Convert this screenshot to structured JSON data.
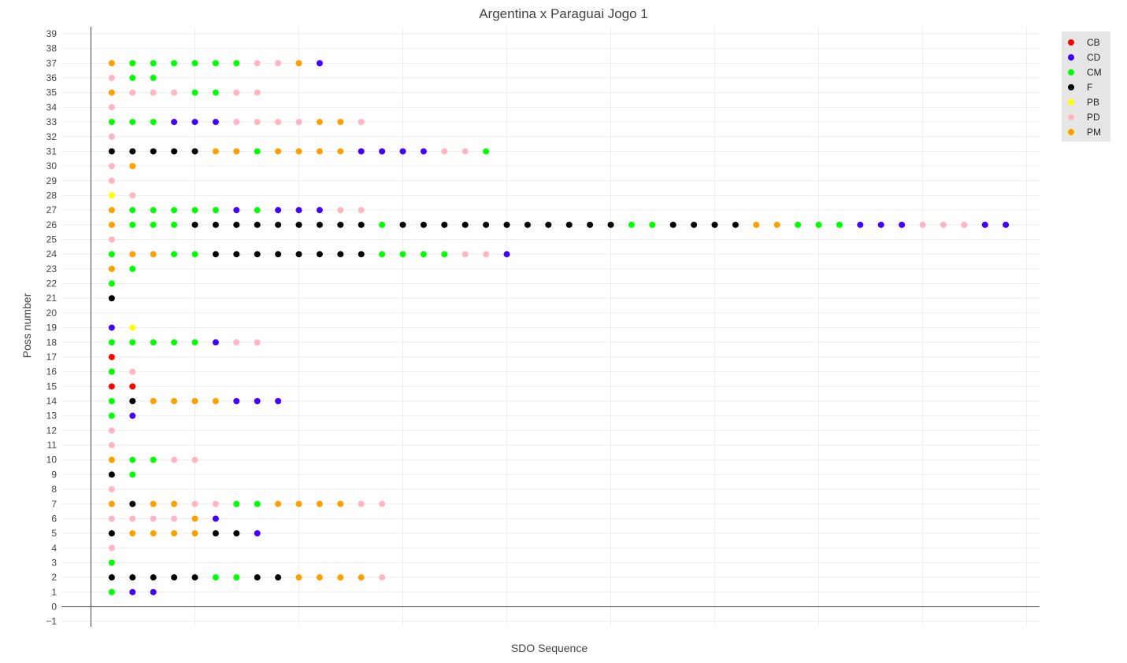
{
  "chart_data": {
    "type": "scatter",
    "title": "Argentina x Paraguai Jogo 1",
    "xlabel": "SDO Sequence",
    "ylabel": "Poss number",
    "ylim": [
      -1,
      39
    ],
    "y_ticks": [
      -1,
      0,
      1,
      2,
      3,
      4,
      5,
      6,
      7,
      8,
      9,
      10,
      11,
      12,
      13,
      14,
      15,
      16,
      17,
      18,
      19,
      20,
      21,
      22,
      23,
      24,
      25,
      26,
      27,
      28,
      29,
      30,
      31,
      32,
      33,
      34,
      35,
      36,
      37,
      38,
      39
    ],
    "y_tick_labels": [
      "−1",
      "0",
      "1",
      "2",
      "3",
      "4",
      "5",
      "6",
      "7",
      "8",
      "9",
      "10",
      "11",
      "12",
      "13",
      "14",
      "15",
      "16",
      "17",
      "18",
      "19",
      "20",
      "21",
      "22",
      "23",
      "24",
      "25",
      "26",
      "27",
      "28",
      "29",
      "30",
      "31",
      "32",
      "33",
      "34",
      "35",
      "36",
      "37",
      "38",
      "39"
    ],
    "xlim": [
      -1.5,
      45.5
    ],
    "x_gridlines": [
      0,
      5,
      10,
      15,
      20,
      25,
      30,
      35,
      40,
      45
    ],
    "grid": true,
    "legend_placement": "top-right",
    "categories": [
      "CB",
      "CD",
      "CM",
      "F",
      "PB",
      "PD",
      "PM"
    ],
    "colors": {
      "CB": "#ff0000",
      "CD": "#4400ff",
      "CM": "#00ff00",
      "F": "#000000",
      "PB": "#ffff00",
      "PD": "#ffb6c1",
      "PM": "#ffa000"
    },
    "rows": [
      {
        "y": 1,
        "seq": [
          "CM",
          "CD",
          "CD"
        ]
      },
      {
        "y": 2,
        "seq": [
          "F",
          "F",
          "F",
          "F",
          "F",
          "CM",
          "CM",
          "F",
          "F",
          "PM",
          "PM",
          "PM",
          "PM",
          "PD"
        ]
      },
      {
        "y": 3,
        "seq": [
          "CM"
        ]
      },
      {
        "y": 4,
        "seq": [
          "PD"
        ]
      },
      {
        "y": 5,
        "seq": [
          "F",
          "PM",
          "PM",
          "PM",
          "PM",
          "F",
          "F",
          "CD"
        ]
      },
      {
        "y": 6,
        "seq": [
          "PD",
          "PD",
          "PD",
          "PD",
          "PM",
          "CD"
        ]
      },
      {
        "y": 7,
        "seq": [
          "PM",
          "F",
          "PM",
          "PM",
          "PD",
          "PD",
          "CM",
          "CM",
          "PM",
          "PM",
          "PM",
          "PM",
          "PD",
          "PD"
        ]
      },
      {
        "y": 8,
        "seq": [
          "PD"
        ]
      },
      {
        "y": 9,
        "seq": [
          "F",
          "CM"
        ]
      },
      {
        "y": 10,
        "seq": [
          "PM",
          "CM",
          "CM",
          "PD",
          "PD"
        ]
      },
      {
        "y": 11,
        "seq": [
          "PD"
        ]
      },
      {
        "y": 12,
        "seq": [
          "PD"
        ]
      },
      {
        "y": 13,
        "seq": [
          "CM",
          "CD"
        ]
      },
      {
        "y": 14,
        "seq": [
          "CM",
          "F",
          "PM",
          "PM",
          "PM",
          "PM",
          "CD",
          "CD",
          "CD"
        ]
      },
      {
        "y": 15,
        "seq": [
          "CB",
          "CB"
        ]
      },
      {
        "y": 16,
        "seq": [
          "CM",
          "PD"
        ]
      },
      {
        "y": 17,
        "seq": [
          "CB"
        ]
      },
      {
        "y": 18,
        "seq": [
          "CM",
          "CM",
          "CM",
          "CM",
          "CM",
          "CD",
          "PD",
          "PD"
        ]
      },
      {
        "y": 19,
        "seq": [
          "CD",
          "PB"
        ]
      },
      {
        "y": 21,
        "seq": [
          "F"
        ]
      },
      {
        "y": 22,
        "seq": [
          "CM"
        ]
      },
      {
        "y": 23,
        "seq": [
          "PM",
          "CM"
        ]
      },
      {
        "y": 24,
        "seq": [
          "CM",
          "PM",
          "PM",
          "CM",
          "CM",
          "F",
          "F",
          "F",
          "F",
          "F",
          "F",
          "F",
          "F",
          "CM",
          "CM",
          "CM",
          "CM",
          "PD",
          "PD",
          "CD"
        ]
      },
      {
        "y": 25,
        "seq": [
          "PD"
        ]
      },
      {
        "y": 26,
        "seq": [
          "PM",
          "CM",
          "CM",
          "CM",
          "F",
          "F",
          "F",
          "F",
          "F",
          "F",
          "F",
          "F",
          "F",
          "CM",
          "F",
          "F",
          "F",
          "F",
          "F",
          "F",
          "F",
          "F",
          "F",
          "F",
          "F",
          "CM",
          "CM",
          "F",
          "F",
          "F",
          "F",
          "PM",
          "PM",
          "CM",
          "CM",
          "CM",
          "CD",
          "CD",
          "CD",
          "PD",
          "PD",
          "PD",
          "CD",
          "CD"
        ]
      },
      {
        "y": 27,
        "seq": [
          "PM",
          "CM",
          "CM",
          "CM",
          "CM",
          "CM",
          "CD",
          "CM",
          "CD",
          "CD",
          "CD",
          "PD",
          "PD"
        ]
      },
      {
        "y": 28,
        "seq": [
          "PB",
          "PD"
        ]
      },
      {
        "y": 29,
        "seq": [
          "PD"
        ]
      },
      {
        "y": 30,
        "seq": [
          "PD",
          "PM"
        ]
      },
      {
        "y": 31,
        "seq": [
          "F",
          "F",
          "F",
          "F",
          "F",
          "PM",
          "PM",
          "CM",
          "PM",
          "PM",
          "PM",
          "PM",
          "CD",
          "CD",
          "CD",
          "CD",
          "PD",
          "PD",
          "CM"
        ]
      },
      {
        "y": 32,
        "seq": [
          "PD"
        ]
      },
      {
        "y": 33,
        "seq": [
          "CM",
          "CM",
          "CM",
          "CD",
          "CD",
          "CD",
          "PD",
          "PD",
          "PD",
          "PD",
          "PM",
          "PM",
          "PD"
        ]
      },
      {
        "y": 34,
        "seq": [
          "PD"
        ]
      },
      {
        "y": 35,
        "seq": [
          "PM",
          "PD",
          "PD",
          "PD",
          "CM",
          "CM",
          "PD",
          "PD"
        ]
      },
      {
        "y": 36,
        "seq": [
          "PD",
          "CM",
          "CM"
        ]
      },
      {
        "y": 37,
        "seq": [
          "PM",
          "CM",
          "CM",
          "CM",
          "CM",
          "CM",
          "CM",
          "PD",
          "PD",
          "PM",
          "CD"
        ]
      }
    ]
  }
}
